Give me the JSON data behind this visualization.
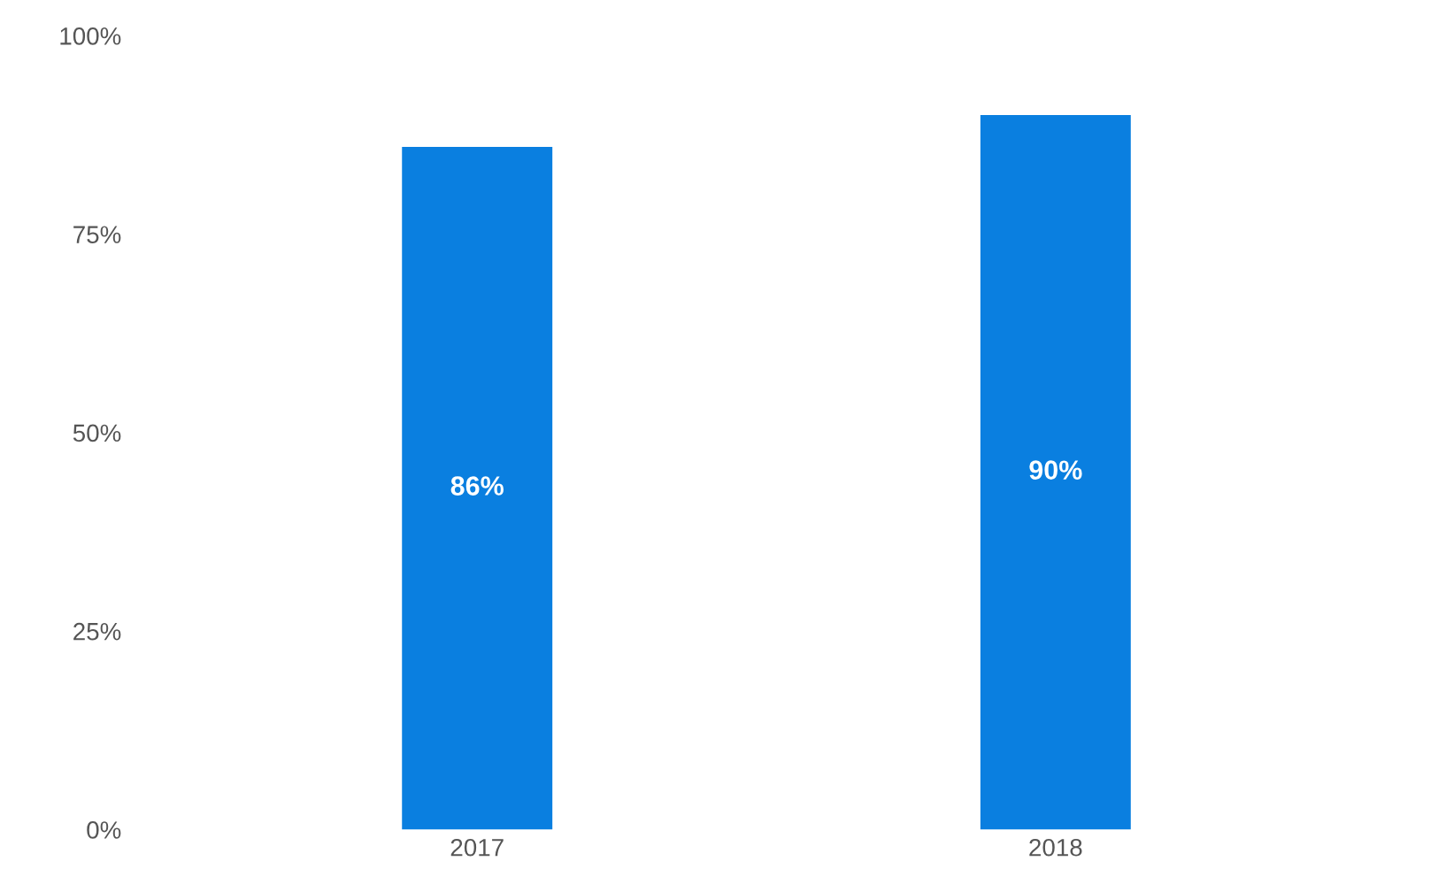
{
  "chart_data": {
    "type": "bar",
    "categories": [
      "2017",
      "2018"
    ],
    "values": [
      86,
      90
    ],
    "value_labels": [
      "86%",
      "90%"
    ],
    "color": "#0a7fe0",
    "ylim": [
      0,
      100
    ],
    "yticks": [
      {
        "value": 0,
        "label": "0%"
      },
      {
        "value": 25,
        "label": "25%"
      },
      {
        "value": 50,
        "label": "50%"
      },
      {
        "value": 75,
        "label": "75%"
      },
      {
        "value": 100,
        "label": "100%"
      }
    ],
    "grid": false,
    "legend": false
  }
}
